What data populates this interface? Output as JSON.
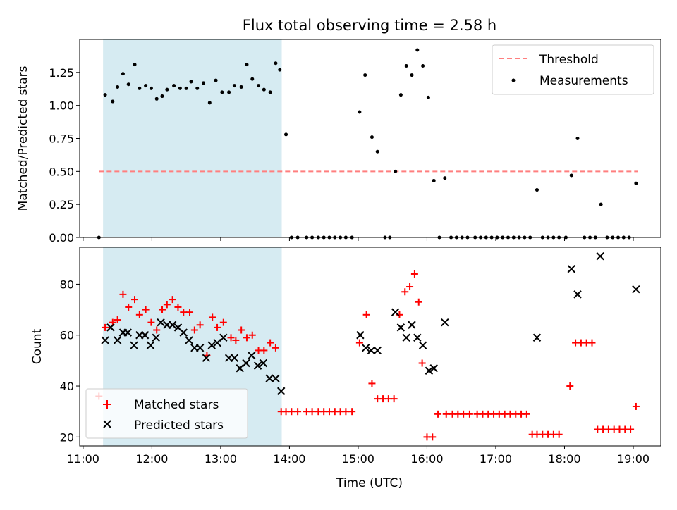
{
  "figure": {
    "title": "Flux total observing time = 2.58 h",
    "xlabel": "Time (UTC)"
  },
  "colors": {
    "threshold": "#ff7f7f",
    "measurements": "#000000",
    "matched": "#ff0000",
    "predicted": "#000000",
    "shade": "#add8e6"
  },
  "chart_data": [
    {
      "type": "scatter",
      "title": "Flux total observing time = 2.58 h",
      "xlabel": "",
      "ylabel": "Matched/Predicted stars",
      "xlim": [
        10.95,
        19.4
      ],
      "ylim": [
        0.0,
        1.5
      ],
      "xticks": [
        11,
        12,
        13,
        14,
        15,
        16,
        17,
        18,
        19
      ],
      "xticklabels": [],
      "yticks": [
        0.0,
        0.25,
        0.5,
        0.75,
        1.0,
        1.25
      ],
      "yticklabels": [
        "0.00",
        "0.25",
        "0.50",
        "0.75",
        "1.00",
        "1.25"
      ],
      "shaded_span": [
        11.3,
        13.88
      ],
      "legend": {
        "placement": "top-right",
        "entries": [
          "Threshold",
          "Measurements"
        ]
      },
      "threshold": {
        "name": "Threshold",
        "x": [
          11.23,
          19.07
        ],
        "y": 0.5,
        "style": "dashed"
      },
      "series": [
        {
          "name": "Measurements",
          "marker": "dot",
          "x": [
            11.23,
            11.32,
            11.43,
            11.5,
            11.58,
            11.66,
            11.75,
            11.82,
            11.91,
            11.99,
            12.07,
            12.15,
            12.22,
            12.32,
            12.41,
            12.5,
            12.57,
            12.66,
            12.75,
            12.84,
            12.93,
            13.02,
            13.12,
            13.2,
            13.3,
            13.38,
            13.46,
            13.55,
            13.63,
            13.72,
            13.8,
            13.86,
            13.95,
            14.03,
            14.12,
            14.25,
            14.33,
            14.42,
            14.5,
            14.58,
            14.66,
            14.74,
            14.82,
            14.91,
            15.02,
            15.1,
            15.2,
            15.28,
            15.39,
            15.46,
            15.54,
            15.62,
            15.7,
            15.78,
            15.86,
            15.94,
            16.02,
            16.1,
            16.18,
            16.26,
            16.35,
            16.43,
            16.51,
            16.59,
            16.7,
            16.78,
            16.86,
            16.94,
            17.02,
            17.1,
            17.18,
            17.26,
            17.34,
            17.42,
            17.5,
            17.6,
            17.68,
            17.76,
            17.84,
            17.92,
            18.02,
            18.1,
            18.19,
            18.29,
            18.37,
            18.45,
            18.53,
            18.62,
            18.7,
            18.78,
            18.86,
            18.94,
            19.04
          ],
          "y": [
            0.0,
            1.08,
            1.03,
            1.14,
            1.24,
            1.16,
            1.31,
            1.13,
            1.15,
            1.13,
            1.05,
            1.07,
            1.12,
            1.15,
            1.13,
            1.13,
            1.18,
            1.13,
            1.17,
            1.02,
            1.19,
            1.1,
            1.1,
            1.15,
            1.14,
            1.31,
            1.2,
            1.15,
            1.12,
            1.1,
            1.32,
            1.27,
            0.78,
            0.0,
            0.0,
            0.0,
            0.0,
            0.0,
            0.0,
            0.0,
            0.0,
            0.0,
            0.0,
            0.0,
            0.95,
            1.23,
            0.76,
            0.65,
            0.0,
            0.0,
            0.5,
            1.08,
            1.3,
            1.23,
            1.42,
            1.3,
            1.06,
            0.43,
            0.0,
            0.45,
            0.0,
            0.0,
            0.0,
            0.0,
            0.0,
            0.0,
            0.0,
            0.0,
            0.0,
            0.0,
            0.0,
            0.0,
            0.0,
            0.0,
            0.0,
            0.36,
            0.0,
            0.0,
            0.0,
            0.0,
            0.0,
            0.47,
            0.75,
            0.0,
            0.0,
            0.0,
            0.25,
            0.0,
            0.0,
            0.0,
            0.0,
            0.0,
            0.41
          ]
        }
      ]
    },
    {
      "type": "scatter",
      "title": "",
      "xlabel": "Time (UTC)",
      "ylabel": "Count",
      "xlim": [
        10.95,
        19.4
      ],
      "ylim": [
        16.5,
        94.5
      ],
      "xticks": [
        11,
        12,
        13,
        14,
        15,
        16,
        17,
        18,
        19
      ],
      "xticklabels": [
        "11:00",
        "12:00",
        "13:00",
        "14:00",
        "15:00",
        "16:00",
        "17:00",
        "18:00",
        "19:00"
      ],
      "yticks": [
        20,
        40,
        60,
        80
      ],
      "yticklabels": [
        "20",
        "40",
        "60",
        "80"
      ],
      "shaded_span": [
        11.3,
        13.88
      ],
      "legend": {
        "placement": "bottom-left",
        "entries": [
          "Matched stars",
          "Predicted stars"
        ]
      },
      "series": [
        {
          "name": "Matched stars",
          "marker": "plus",
          "x": [
            11.23,
            11.32,
            11.43,
            11.5,
            11.58,
            11.66,
            11.75,
            11.82,
            11.91,
            11.99,
            12.07,
            12.15,
            12.22,
            12.3,
            12.38,
            12.46,
            12.55,
            12.62,
            12.7,
            12.8,
            12.88,
            12.95,
            13.04,
            13.15,
            13.22,
            13.3,
            13.38,
            13.46,
            13.55,
            13.63,
            13.72,
            13.8,
            13.88,
            13.95,
            14.03,
            14.12,
            14.25,
            14.33,
            14.42,
            14.5,
            14.58,
            14.66,
            14.74,
            14.82,
            14.91,
            15.02,
            15.12,
            15.2,
            15.28,
            15.36,
            15.44,
            15.52,
            15.6,
            15.68,
            15.75,
            15.82,
            15.88,
            15.93,
            16.0,
            16.08,
            16.16,
            16.28,
            16.37,
            16.45,
            16.53,
            16.62,
            16.73,
            16.81,
            16.89,
            16.97,
            17.05,
            17.13,
            17.21,
            17.29,
            17.37,
            17.45,
            17.53,
            17.6,
            17.68,
            17.76,
            17.84,
            17.92,
            18.08,
            18.16,
            18.24,
            18.32,
            18.4,
            18.48,
            18.56,
            18.64,
            18.72,
            18.8,
            18.88,
            18.96,
            19.04
          ],
          "y": [
            36,
            63,
            65,
            66,
            76,
            71,
            74,
            68,
            70,
            65,
            62,
            70,
            72,
            74,
            71,
            69,
            69,
            62,
            64,
            52,
            67,
            63,
            65,
            59,
            58,
            62,
            59,
            60,
            54,
            54,
            57,
            55,
            30,
            30,
            30,
            30,
            30,
            30,
            30,
            30,
            30,
            30,
            30,
            30,
            30,
            57,
            68,
            41,
            35,
            35,
            35,
            35,
            68,
            77,
            79,
            84,
            73,
            49,
            20,
            20,
            29,
            29,
            29,
            29,
            29,
            29,
            29,
            29,
            29,
            29,
            29,
            29,
            29,
            29,
            29,
            29,
            21,
            21,
            21,
            21,
            21,
            21,
            40,
            57,
            57,
            57,
            57,
            23,
            23,
            23,
            23,
            23,
            23,
            23,
            32
          ]
        },
        {
          "name": "Predicted stars",
          "marker": "x",
          "x": [
            11.32,
            11.4,
            11.5,
            11.58,
            11.65,
            11.74,
            11.82,
            11.9,
            11.98,
            12.06,
            12.13,
            12.22,
            12.3,
            12.38,
            12.46,
            12.54,
            12.62,
            12.7,
            12.79,
            12.87,
            12.95,
            13.04,
            13.12,
            13.2,
            13.28,
            13.37,
            13.45,
            13.54,
            13.62,
            13.71,
            13.8,
            13.88,
            15.03,
            15.11,
            15.19,
            15.28,
            15.54,
            15.62,
            15.7,
            15.78,
            15.86,
            15.94,
            16.03,
            16.1,
            16.26,
            17.6,
            18.1,
            18.19,
            18.52,
            19.04
          ],
          "y": [
            58,
            63,
            58,
            61,
            61,
            56,
            60,
            60,
            56,
            59,
            65,
            64,
            64,
            63,
            61,
            58,
            55,
            55,
            51,
            56,
            57,
            59,
            51,
            51,
            47,
            49,
            52,
            48,
            49,
            43,
            43,
            38,
            60,
            55,
            54,
            54,
            69,
            63,
            59,
            64,
            59,
            56,
            46,
            47,
            65,
            59,
            86,
            76,
            91,
            78
          ]
        }
      ]
    }
  ]
}
